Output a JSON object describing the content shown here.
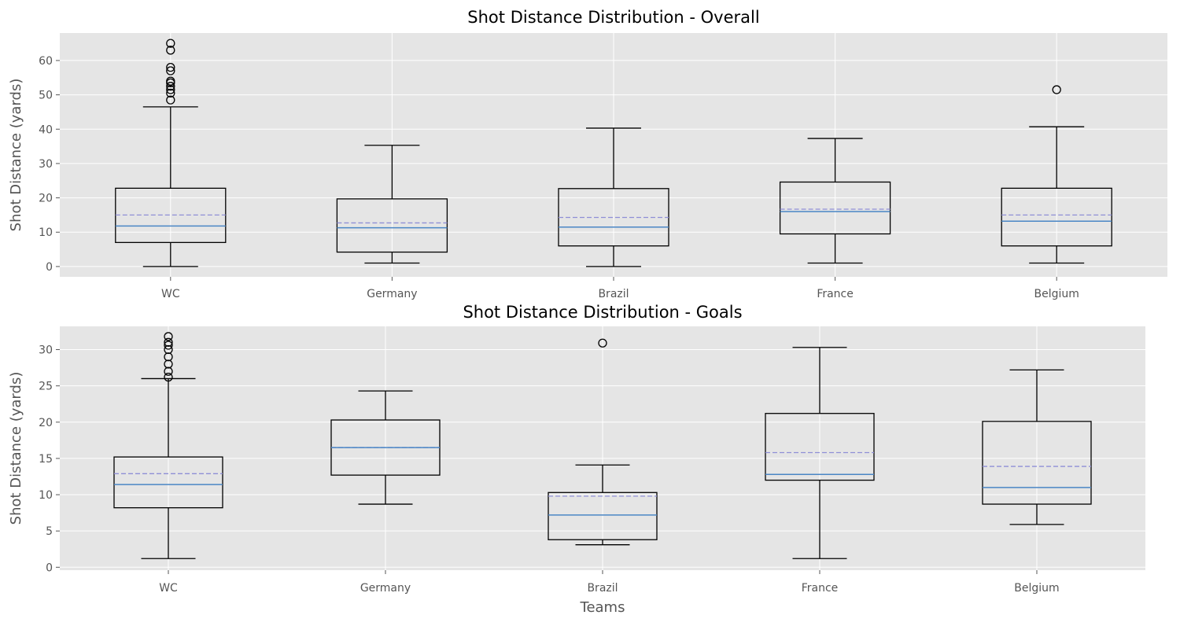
{
  "chart_data": [
    {
      "type": "box",
      "title": "Shot Distance Distribution - Overall",
      "xlabel": "",
      "ylabel": "Shot Distance (yards)",
      "ylim": [
        -3,
        68
      ],
      "yticks": [
        0,
        10,
        20,
        30,
        40,
        50,
        60
      ],
      "categories": [
        "WC",
        "Germany",
        "Brazil",
        "France",
        "Belgium"
      ],
      "grid": true,
      "boxes": [
        {
          "whislo": 0,
          "q1": 7,
          "med": 11.8,
          "mean": 15,
          "q3": 22.8,
          "whishi": 46.5,
          "fliers": [
            48.5,
            50.5,
            51.5,
            52.5,
            53.5,
            54,
            57,
            58,
            63,
            65
          ]
        },
        {
          "whislo": 1,
          "q1": 4.2,
          "med": 11.3,
          "mean": 12.7,
          "q3": 19.7,
          "whishi": 35.3,
          "fliers": []
        },
        {
          "whislo": 0,
          "q1": 6,
          "med": 11.5,
          "mean": 14.3,
          "q3": 22.7,
          "whishi": 40.3,
          "fliers": []
        },
        {
          "whislo": 1,
          "q1": 9.5,
          "med": 16,
          "mean": 16.7,
          "q3": 24.6,
          "whishi": 37.3,
          "fliers": []
        },
        {
          "whislo": 1,
          "q1": 6,
          "med": 13.2,
          "mean": 15,
          "q3": 22.8,
          "whishi": 40.7,
          "fliers": [
            51.5
          ]
        }
      ]
    },
    {
      "type": "box",
      "title": "Shot Distance Distribution - Goals",
      "xlabel": "Teams",
      "ylabel": "Shot Distance (yards)",
      "ylim": [
        -0.4,
        33.2
      ],
      "yticks": [
        0,
        5,
        10,
        15,
        20,
        25,
        30
      ],
      "categories": [
        "WC",
        "Germany",
        "Brazil",
        "France",
        "Belgium"
      ],
      "grid": true,
      "boxes": [
        {
          "whislo": 1.2,
          "q1": 8.2,
          "med": 11.4,
          "mean": 12.9,
          "q3": 15.2,
          "whishi": 26,
          "fliers": [
            26.2,
            27,
            28,
            29,
            30,
            30.6,
            31,
            31.8
          ]
        },
        {
          "whislo": 8.7,
          "q1": 12.7,
          "med": 16.5,
          "mean": 16.5,
          "q3": 20.3,
          "whishi": 24.3,
          "fliers": []
        },
        {
          "whislo": 3.1,
          "q1": 3.8,
          "med": 7.2,
          "mean": 9.8,
          "q3": 10.3,
          "whishi": 14.1,
          "fliers": [
            30.9
          ]
        },
        {
          "whislo": 1.2,
          "q1": 12,
          "med": 12.8,
          "mean": 15.8,
          "q3": 21.2,
          "whishi": 30.3,
          "fliers": []
        },
        {
          "whislo": 5.9,
          "q1": 8.7,
          "med": 11,
          "mean": 13.9,
          "q3": 20.1,
          "whishi": 27.2,
          "fliers": []
        }
      ]
    }
  ]
}
